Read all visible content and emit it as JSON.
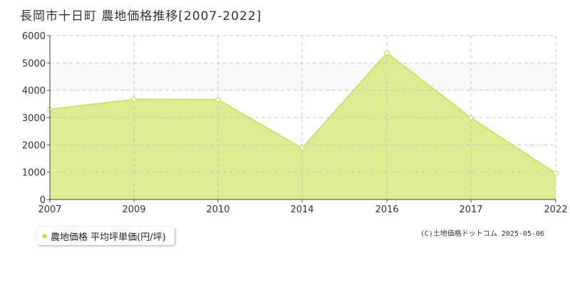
{
  "header": {
    "title": "長岡市十日町 農地価格推移[2007-2022]"
  },
  "legend": {
    "label": "農地価格 平均坪単価(円/坪)"
  },
  "footer": {
    "copyright": "(C)土地価格ドットコム 2025-05-06"
  },
  "colors": {
    "fill": "#dcec91",
    "line": "#c2e05a",
    "band": "#f8f7f9",
    "grid": "#c8c8c8",
    "axis": "#444444",
    "legend_marker": "#b8dd3c"
  },
  "chart_data": {
    "type": "area",
    "title": "長岡市十日町 農地価格推移[2007-2022]",
    "xlabel": "",
    "ylabel": "",
    "categories": [
      "2007",
      "2009",
      "2010",
      "2014",
      "2016",
      "2017",
      "2022"
    ],
    "series": [
      {
        "name": "農地価格 平均坪単価(円/坪)",
        "values": [
          3300,
          3670,
          3660,
          1880,
          5370,
          2990,
          960
        ]
      }
    ],
    "ylim": [
      0,
      6000
    ],
    "yticks": [
      0,
      1000,
      2000,
      3000,
      4000,
      5000,
      6000
    ],
    "grid": true,
    "legend_position": "bottom-left"
  }
}
